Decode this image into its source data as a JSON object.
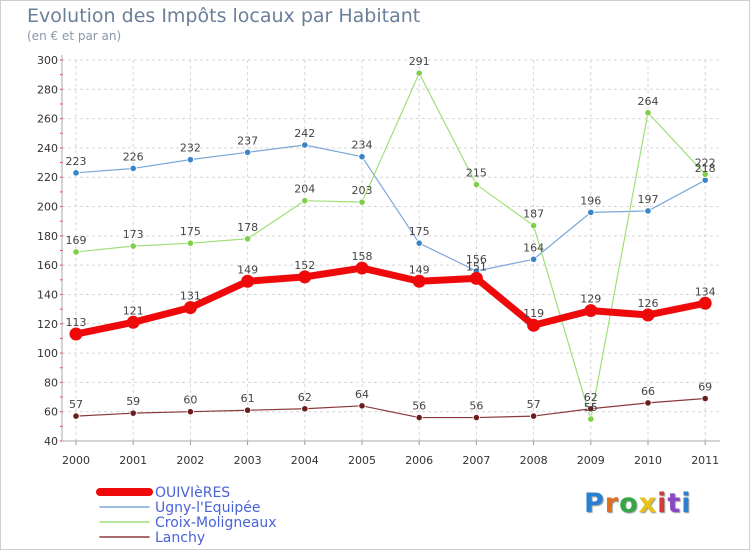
{
  "header": {
    "title": "Evolution des Impôts locaux par Habitant",
    "subtitle": "(en € et par an)"
  },
  "logo": {
    "text": "Proxiti",
    "colors": [
      "#2a7fd0",
      "#e0701e",
      "#35a845",
      "#e8c21a",
      "#d23a3a",
      "#8a49c2",
      "#2a7fd0"
    ]
  },
  "chart_data": {
    "type": "line",
    "title": "Evolution des Impôts locaux par Habitant",
    "subtitle": "(en € et par an)",
    "xlabel": "",
    "ylabel": "",
    "categories": [
      "2000",
      "2001",
      "2002",
      "2003",
      "2004",
      "2005",
      "2006",
      "2007",
      "2008",
      "2009",
      "2010",
      "2011"
    ],
    "ylim": [
      40,
      300
    ],
    "yticks": [
      40,
      60,
      80,
      100,
      120,
      140,
      160,
      180,
      200,
      220,
      240,
      260,
      280,
      300
    ],
    "grid": true,
    "legend": "bottom-left",
    "series": [
      {
        "name": "OUIVIèRES",
        "color": "#ee0a0a",
        "width": 7,
        "marker": 6.5,
        "values": [
          113,
          121,
          131,
          149,
          152,
          158,
          149,
          151,
          119,
          129,
          126,
          134
        ]
      },
      {
        "name": "Ugny-l'Equipée",
        "color": "#7aa8d8",
        "marker_color": "#3a84c8",
        "width": 1.2,
        "marker": 3.2,
        "values": [
          223,
          226,
          232,
          237,
          242,
          234,
          175,
          156,
          164,
          196,
          197,
          218
        ]
      },
      {
        "name": "Croix-Moligneaux",
        "color": "#9ee07a",
        "marker_color": "#7fd048",
        "width": 1.2,
        "marker": 3.2,
        "values": [
          169,
          173,
          175,
          178,
          204,
          203,
          291,
          215,
          187,
          55,
          264,
          222
        ]
      },
      {
        "name": "Lanchy",
        "color": "#8b3a3a",
        "marker_color": "#6a1e1e",
        "width": 1.2,
        "marker": 3.2,
        "values": [
          57,
          59,
          60,
          61,
          62,
          64,
          56,
          56,
          57,
          62,
          66,
          69
        ]
      }
    ]
  }
}
